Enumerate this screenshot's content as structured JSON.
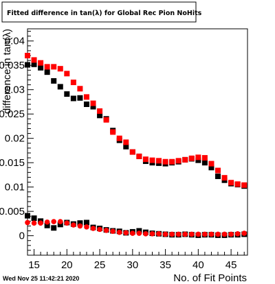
{
  "chart_data": {
    "type": "scatter",
    "title": "Fitted difference in tan(λ) for Global Rec Pion NoHits",
    "xlabel": "No. of Fit Points",
    "ylabel": "difference in tan(λ)",
    "timestamp": "Wed Nov 25 11:42:21 2020",
    "xlim": [
      14,
      47.5
    ],
    "ylim": [
      -0.004,
      0.0425
    ],
    "x_ticks": [
      15,
      20,
      25,
      30,
      35,
      40,
      45
    ],
    "y_ticks": [
      0,
      0.005,
      0.01,
      0.015,
      0.02,
      0.025,
      0.03,
      0.035,
      0.04
    ],
    "y_tick_labels": [
      "0",
      "0.005",
      "0.01",
      "0.015",
      "0.02",
      "0.025",
      "0.03",
      "0.035",
      "0.04"
    ],
    "grid": false,
    "legend": "none",
    "series": [
      {
        "color": "#000000",
        "marker": "square",
        "x": [
          14,
          15,
          16,
          17,
          18,
          19,
          20,
          21,
          22,
          23,
          24,
          25,
          26,
          27,
          28,
          29,
          30,
          31,
          32,
          33,
          34,
          35,
          36,
          37,
          38,
          39,
          40,
          41,
          42,
          43,
          44,
          45,
          46,
          47
        ],
        "y": [
          0.0351,
          0.0352,
          0.0345,
          0.0336,
          0.0318,
          0.0306,
          0.0291,
          0.0282,
          0.0283,
          0.027,
          0.0265,
          0.0247,
          0.024,
          0.0216,
          0.0196,
          0.0183,
          0.0172,
          0.0163,
          0.0153,
          0.015,
          0.0149,
          0.0148,
          0.015,
          0.0152,
          0.0156,
          0.0158,
          0.0155,
          0.015,
          0.014,
          0.0122,
          0.0114,
          0.0107,
          0.0105,
          0.0102
        ]
      },
      {
        "color": "#000000",
        "marker": "square",
        "x": [
          14,
          15,
          16,
          17,
          18,
          19,
          20,
          21,
          22,
          23,
          24,
          25,
          26,
          27,
          28,
          29,
          30,
          31,
          32,
          33,
          34,
          35,
          36,
          37,
          38,
          39,
          40,
          41,
          42,
          43,
          44,
          45,
          46,
          47
        ],
        "y": [
          0.0041,
          0.0036,
          0.003,
          0.0021,
          0.0016,
          0.0023,
          0.0027,
          0.0024,
          0.0026,
          0.0027,
          0.0017,
          0.0015,
          0.0012,
          0.001,
          0.0009,
          0.0006,
          0.0008,
          0.001,
          0.0007,
          0.0005,
          0.0004,
          0.0003,
          0.0002,
          0.0002,
          0.0003,
          0.0002,
          0.0001,
          0.0002,
          0.0002,
          0.0001,
          0.0001,
          0.0002,
          0.0002,
          0.0003
        ]
      },
      {
        "color": "#ff0000",
        "marker": "square",
        "x": [
          14,
          15,
          16,
          17,
          18,
          19,
          20,
          21,
          22,
          23,
          24,
          25,
          26,
          27,
          28,
          29,
          30,
          31,
          32,
          33,
          34,
          35,
          36,
          37,
          38,
          39,
          40,
          41,
          42,
          43,
          44,
          45,
          46,
          47
        ],
        "y": [
          0.037,
          0.0361,
          0.0355,
          0.0347,
          0.0347,
          0.0343,
          0.0333,
          0.0315,
          0.0302,
          0.0285,
          0.0272,
          0.0256,
          0.0238,
          0.0213,
          0.02,
          0.0192,
          0.0172,
          0.0163,
          0.0157,
          0.0155,
          0.0154,
          0.0152,
          0.0152,
          0.0154,
          0.0156,
          0.0159,
          0.0161,
          0.016,
          0.0148,
          0.0134,
          0.0119,
          0.0109,
          0.0106,
          0.0104
        ]
      },
      {
        "color": "#ff0000",
        "marker": "circle",
        "x": [
          14,
          15,
          16,
          17,
          18,
          19,
          20,
          21,
          22,
          23,
          24,
          25,
          26,
          27,
          28,
          29,
          30,
          31,
          32,
          33,
          34,
          35,
          36,
          37,
          38,
          39,
          40,
          41,
          42,
          43,
          44,
          45,
          46,
          47
        ],
        "y": [
          0.0027,
          0.0026,
          0.0026,
          0.0028,
          0.0029,
          0.0029,
          0.0026,
          0.0022,
          0.002,
          0.0018,
          0.0015,
          0.0013,
          0.0011,
          0.0009,
          0.0007,
          0.0006,
          0.0005,
          0.0005,
          0.0004,
          0.0004,
          0.0004,
          0.0003,
          0.0003,
          0.0003,
          0.0003,
          0.0003,
          0.0003,
          0.0003,
          0.0003,
          0.0003,
          0.0003,
          0.0003,
          0.0004,
          0.0005
        ]
      }
    ]
  }
}
